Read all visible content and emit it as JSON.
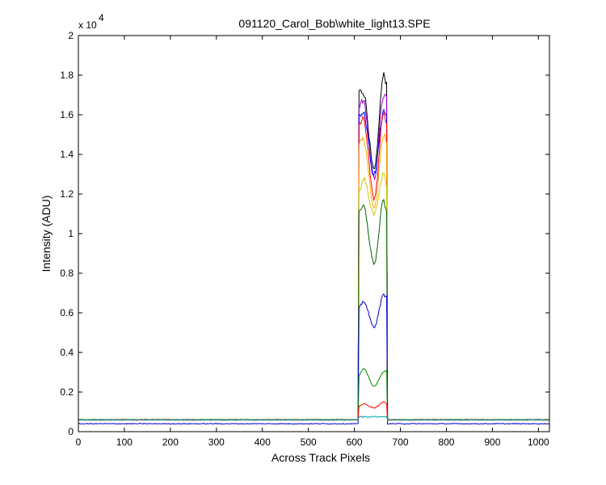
{
  "chart_data": {
    "type": "line",
    "title": "091120_Carol_Bob\\white_light13.SPE",
    "xlabel": "Across Track Pixels",
    "ylabel": "Intensity (ADU)",
    "xlim": [
      0,
      1024
    ],
    "ylim": [
      0,
      20000
    ],
    "y_exponent_label": "x 10",
    "y_exponent_power": "4",
    "x_ticks": [
      0,
      100,
      200,
      300,
      400,
      500,
      600,
      700,
      800,
      900,
      1000
    ],
    "x_tick_labels": [
      "0",
      "100",
      "200",
      "300",
      "400",
      "500",
      "600",
      "700",
      "800",
      "900",
      "1000"
    ],
    "y_ticks": [
      0,
      2000,
      4000,
      6000,
      8000,
      10000,
      12000,
      14000,
      16000,
      18000,
      20000
    ],
    "y_tick_labels": [
      "0",
      "0.2",
      "0.4",
      "0.6",
      "0.8",
      "1",
      "1.2",
      "1.4",
      "1.6",
      "1.8",
      "2"
    ],
    "grid": false,
    "series": [
      {
        "color": "#000000",
        "baseline": 600,
        "left_edge": 17200,
        "left_peak": 17150,
        "center": 13200,
        "right_peak": 18000,
        "right_edge": 17600
      },
      {
        "color": "#9900cc",
        "baseline": 600,
        "left_edge": 16500,
        "left_peak": 16700,
        "center": 12800,
        "right_peak": 17000,
        "right_edge": 16800
      },
      {
        "color": "#0000ff",
        "baseline": 600,
        "left_edge": 16000,
        "left_peak": 16100,
        "center": 13000,
        "right_peak": 16200,
        "right_edge": 16000
      },
      {
        "color": "#ff0000",
        "baseline": 600,
        "left_edge": 15500,
        "left_peak": 15800,
        "center": 11800,
        "right_peak": 16000,
        "right_edge": 15700
      },
      {
        "color": "#ffaa00",
        "baseline": 600,
        "left_edge": 14500,
        "left_peak": 14800,
        "center": 11300,
        "right_peak": 15000,
        "right_edge": 14600
      },
      {
        "color": "#cccc00",
        "baseline": 600,
        "left_edge": 12000,
        "left_peak": 12800,
        "center": 11000,
        "right_peak": 13000,
        "right_edge": 12300
      },
      {
        "color": "#006600",
        "baseline": 600,
        "left_edge": 11000,
        "left_peak": 11400,
        "center": 8500,
        "right_peak": 11700,
        "right_edge": 11000
      },
      {
        "color": "#0000cc",
        "baseline": 400,
        "left_edge": 6200,
        "left_peak": 6600,
        "center": 5300,
        "right_peak": 6900,
        "right_edge": 6800
      },
      {
        "color": "#008800",
        "baseline": 600,
        "left_edge": 2800,
        "left_peak": 3200,
        "center": 2300,
        "right_peak": 3000,
        "right_edge": 3100
      },
      {
        "color": "#ff0000",
        "baseline": 600,
        "left_edge": 1300,
        "left_peak": 1400,
        "center": 1200,
        "right_peak": 1500,
        "right_edge": 1400
      },
      {
        "color": "#00aaaa",
        "baseline": 600,
        "left_edge": 750,
        "left_peak": 750,
        "center": 750,
        "right_peak": 750,
        "right_edge": 750
      }
    ],
    "signal_region_x": [
      610,
      670
    ]
  }
}
